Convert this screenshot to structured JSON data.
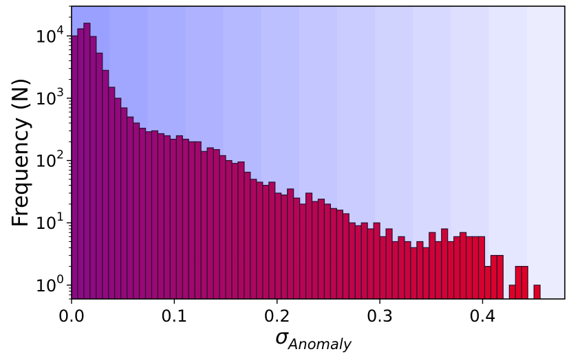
{
  "chart_data": {
    "type": "bar",
    "title": "",
    "xlabel": "σ",
    "xlabel_subscript": "Anomaly",
    "ylabel": "Frequency (N)",
    "yscale": "log",
    "xlim": [
      0.0,
      0.48
    ],
    "ylim": [
      0.6,
      30000
    ],
    "bin_width": 0.006,
    "x_ticks": [
      {
        "value": 0.0,
        "label": "0.0"
      },
      {
        "value": 0.1,
        "label": "0.1"
      },
      {
        "value": 0.2,
        "label": "0.2"
      },
      {
        "value": 0.3,
        "label": "0.3"
      },
      {
        "value": 0.4,
        "label": "0.4"
      }
    ],
    "y_ticks": [
      {
        "value": 1,
        "base": "10",
        "exp": "0"
      },
      {
        "value": 10,
        "base": "10",
        "exp": "1"
      },
      {
        "value": 100,
        "base": "10",
        "exp": "2"
      },
      {
        "value": 1000,
        "base": "10",
        "exp": "3"
      },
      {
        "value": 10000,
        "base": "10",
        "exp": "4"
      }
    ],
    "grid": false,
    "legend": "none",
    "bar_color_start": "#8a0a85",
    "bar_color_end": "#e8001c",
    "bar_edge_color": "#2a1030",
    "background_gradient": [
      "#9aa0ff",
      "#ececff"
    ],
    "values": [
      10000,
      13000,
      16000,
      9800,
      5300,
      2800,
      1500,
      1000,
      700,
      500,
      400,
      330,
      290,
      300,
      270,
      250,
      220,
      250,
      220,
      200,
      200,
      140,
      160,
      150,
      120,
      100,
      90,
      95,
      65,
      50,
      45,
      40,
      45,
      30,
      28,
      35,
      25,
      20,
      30,
      22,
      24,
      20,
      17,
      16,
      14,
      10,
      9,
      10,
      8,
      10,
      6,
      8,
      5,
      6,
      5,
      4,
      5,
      4,
      7,
      5,
      8,
      5,
      6,
      7,
      6,
      6,
      6,
      2,
      3,
      3,
      0,
      1,
      2,
      2,
      0,
      1
    ]
  }
}
